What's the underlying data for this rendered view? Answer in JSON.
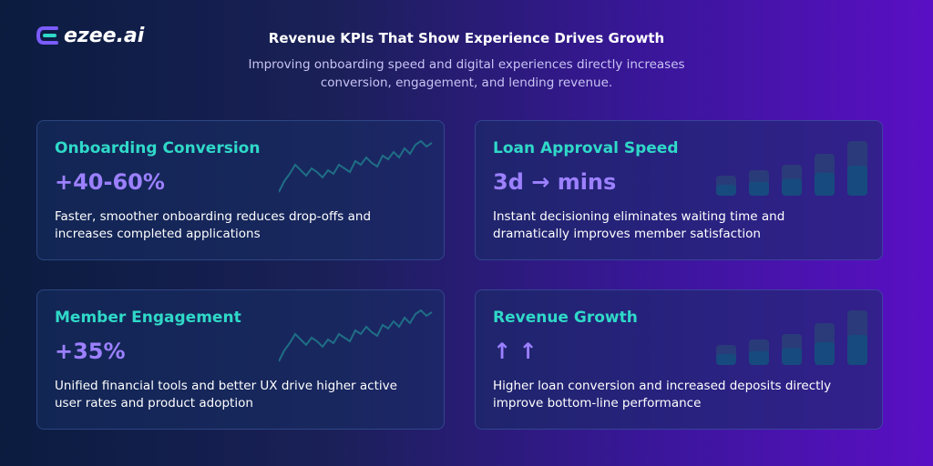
{
  "logo": "ezee.ai",
  "header": {
    "title": "Revenue KPIs That Show Experience Drives Growth",
    "subtitle": "Improving onboarding speed and digital experiences directly increases conversion, engagement, and lending revenue."
  },
  "cards": [
    {
      "title": "Onboarding Conversion",
      "metric": "+40-60%",
      "description": "Faster, smoother onboarding reduces drop-offs and increases completed applications"
    },
    {
      "title": "Loan Approval Speed",
      "metric": "3d → mins",
      "description": "Instant decisioning eliminates waiting time and dramatically improves member satisfaction"
    },
    {
      "title": "Member Engagement",
      "metric": "+35%",
      "description": "Unified financial tools and better UX drive higher active user rates and product adoption"
    },
    {
      "title": "Revenue Growth",
      "metric": "↑ ↑",
      "description": "Higher loan conversion and increased deposits directly improve bottom-line performance"
    }
  ]
}
